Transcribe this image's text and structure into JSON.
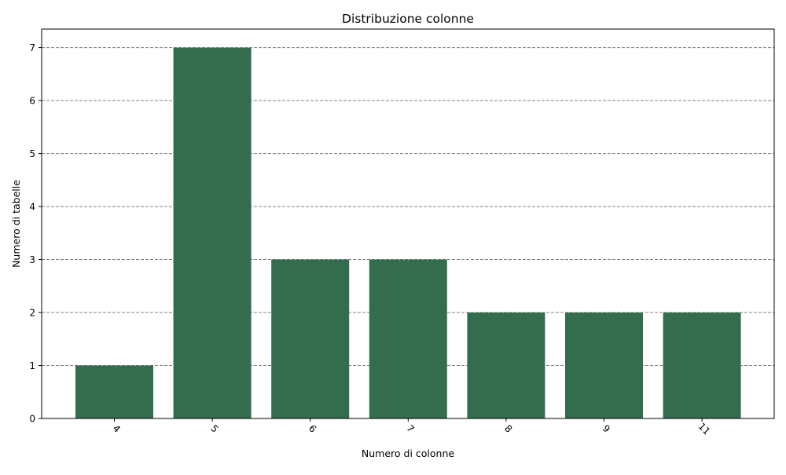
{
  "chart_data": {
    "type": "bar",
    "title": "Distribuzione colonne",
    "xlabel": "Numero di colonne",
    "ylabel": "Numero di tabelle",
    "categories": [
      "4",
      "5",
      "6",
      "7",
      "8",
      "9",
      "11"
    ],
    "values": [
      1,
      7,
      3,
      3,
      2,
      2,
      2
    ],
    "ylim": [
      0,
      7.35
    ],
    "yticks": [
      "0",
      "1",
      "2",
      "3",
      "4",
      "5",
      "6",
      "7"
    ],
    "x_tick_rotation": "-45deg",
    "grid": "horizontal dashed",
    "legend": "none",
    "colors": {
      "bar": "#346c4e",
      "grid": "#808080",
      "axis": "#000000"
    }
  }
}
